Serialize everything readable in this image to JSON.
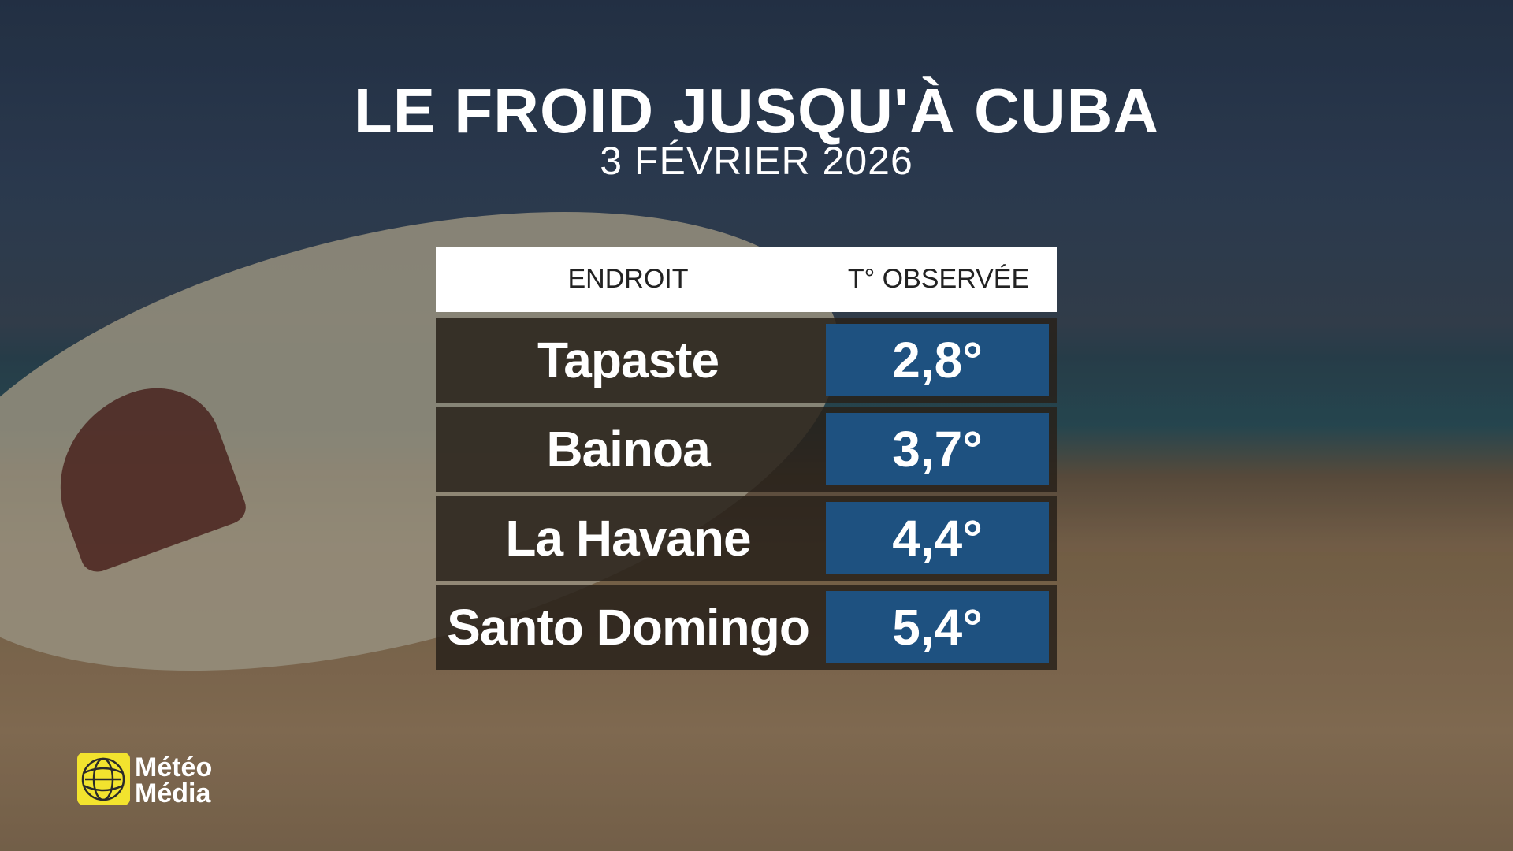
{
  "header": {
    "title": "LE FROID JUSQU'À CUBA",
    "subtitle": "3 FÉVRIER 2026"
  },
  "table": {
    "columns": [
      "ENDROIT",
      "T° OBSERVÉE"
    ],
    "rows": [
      [
        "Tapaste",
        "2,8°"
      ],
      [
        "Bainoa",
        "3,7°"
      ],
      [
        "La Havane",
        "4,4°"
      ],
      [
        "Santo Domingo",
        "5,4°"
      ]
    ]
  },
  "logo": {
    "line1": "Météo",
    "line2": "Média"
  }
}
